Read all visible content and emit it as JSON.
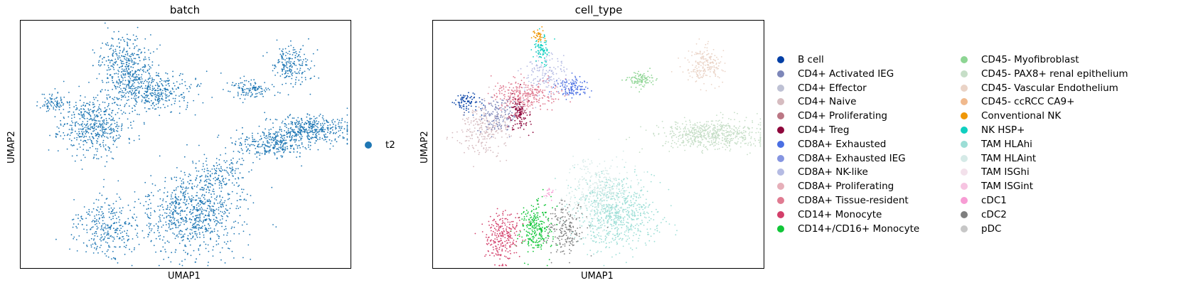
{
  "chart_data": [
    {
      "type": "scatter",
      "title": "batch",
      "xlabel": "UMAP1",
      "ylabel": "UMAP2",
      "grid": false,
      "legend_placement": "right",
      "legend": [
        {
          "name": "t2",
          "color": "#1f77b4"
        }
      ],
      "clusters": [
        {
          "category": "t2",
          "color": "#1f77b4",
          "cx": 0.1,
          "cy": 0.67,
          "sx": 0.02,
          "sy": 0.02,
          "n": 80
        },
        {
          "category": "t2",
          "color": "#1f77b4",
          "cx": 0.22,
          "cy": 0.58,
          "sx": 0.05,
          "sy": 0.06,
          "n": 500
        },
        {
          "category": "t2",
          "color": "#1f77b4",
          "cx": 0.32,
          "cy": 0.82,
          "sx": 0.04,
          "sy": 0.06,
          "n": 380
        },
        {
          "category": "t2",
          "color": "#1f77b4",
          "cx": 0.4,
          "cy": 0.71,
          "sx": 0.06,
          "sy": 0.04,
          "n": 380
        },
        {
          "category": "t2",
          "color": "#1f77b4",
          "cx": 0.7,
          "cy": 0.72,
          "sx": 0.03,
          "sy": 0.02,
          "n": 120
        },
        {
          "category": "t2",
          "color": "#1f77b4",
          "cx": 0.82,
          "cy": 0.82,
          "sx": 0.03,
          "sy": 0.04,
          "n": 200
        },
        {
          "category": "t2",
          "color": "#1f77b4",
          "cx": 0.76,
          "cy": 0.5,
          "sx": 0.06,
          "sy": 0.03,
          "n": 300
        },
        {
          "category": "t2",
          "color": "#1f77b4",
          "cx": 0.88,
          "cy": 0.56,
          "sx": 0.06,
          "sy": 0.03,
          "n": 400
        },
        {
          "category": "t2",
          "color": "#1f77b4",
          "cx": 0.52,
          "cy": 0.22,
          "sx": 0.07,
          "sy": 0.08,
          "n": 800
        },
        {
          "category": "t2",
          "color": "#1f77b4",
          "cx": 0.26,
          "cy": 0.16,
          "sx": 0.05,
          "sy": 0.06,
          "n": 300
        },
        {
          "category": "t2",
          "color": "#1f77b4",
          "cx": 0.6,
          "cy": 0.38,
          "sx": 0.04,
          "sy": 0.04,
          "n": 150
        }
      ]
    },
    {
      "type": "scatter",
      "title": "cell_type",
      "xlabel": "UMAP1",
      "ylabel": "UMAP2",
      "grid": false,
      "legend_placement": "right",
      "legend": [
        {
          "name": "B cell",
          "color": "#023fa5"
        },
        {
          "name": "CD4+ Activated IEG",
          "color": "#7d87b9"
        },
        {
          "name": "CD4+ Effector",
          "color": "#bec1d4"
        },
        {
          "name": "CD4+ Naive",
          "color": "#d6bcc0"
        },
        {
          "name": "CD4+ Proliferating",
          "color": "#bb7784"
        },
        {
          "name": "CD4+ Treg",
          "color": "#8e063b"
        },
        {
          "name": "CD8A+ Exhausted",
          "color": "#4a6fe3"
        },
        {
          "name": "CD8A+ Exhausted IEG",
          "color": "#8595e1"
        },
        {
          "name": "CD8A+ NK-like",
          "color": "#b5bbe3"
        },
        {
          "name": "CD8A+ Proliferating",
          "color": "#e6afb9"
        },
        {
          "name": "CD8A+ Tissue-resident",
          "color": "#e07b91"
        },
        {
          "name": "CD14+ Monocyte",
          "color": "#d33f6a"
        },
        {
          "name": "CD14+/CD16+ Monocyte",
          "color": "#11c638"
        },
        {
          "name": "CD45- Myofibroblast",
          "color": "#8dd593"
        },
        {
          "name": "CD45- PAX8+ renal epithelium",
          "color": "#c6dec7"
        },
        {
          "name": "CD45- Vascular Endothelium",
          "color": "#ead3c6"
        },
        {
          "name": "CD45- ccRCC CA9+",
          "color": "#f0b98d"
        },
        {
          "name": "Conventional NK",
          "color": "#ef9708"
        },
        {
          "name": "NK HSP+",
          "color": "#0fcfc0"
        },
        {
          "name": "TAM HLAhi",
          "color": "#9cded6"
        },
        {
          "name": "TAM HLAint",
          "color": "#d5eae7"
        },
        {
          "name": "TAM ISGhi",
          "color": "#f3e1eb"
        },
        {
          "name": "TAM ISGint",
          "color": "#f6c4e1"
        },
        {
          "name": "cDC1",
          "color": "#f79cd4"
        },
        {
          "name": "cDC2",
          "color": "#7f7f7f"
        },
        {
          "name": "pDC",
          "color": "#c7c7c7"
        }
      ],
      "clusters": [
        {
          "category": "B cell",
          "color": "#023fa5",
          "cx": 0.1,
          "cy": 0.67,
          "sx": 0.02,
          "sy": 0.02,
          "n": 80
        },
        {
          "category": "CD4+ Naive",
          "color": "#d6bcc0",
          "cx": 0.15,
          "cy": 0.56,
          "sx": 0.04,
          "sy": 0.05,
          "n": 250
        },
        {
          "category": "CD4+ Activated IEG",
          "color": "#7d87b9",
          "cx": 0.2,
          "cy": 0.62,
          "sx": 0.03,
          "sy": 0.04,
          "n": 150
        },
        {
          "category": "CD8A+ Tissue-resident",
          "color": "#e07b91",
          "cx": 0.28,
          "cy": 0.7,
          "sx": 0.05,
          "sy": 0.03,
          "n": 300
        },
        {
          "category": "CD4+ Treg",
          "color": "#8e063b",
          "cx": 0.26,
          "cy": 0.62,
          "sx": 0.015,
          "sy": 0.03,
          "n": 120
        },
        {
          "category": "CD8A+ Exhausted",
          "color": "#4a6fe3",
          "cx": 0.42,
          "cy": 0.73,
          "sx": 0.025,
          "sy": 0.02,
          "n": 120
        },
        {
          "category": "CD8A+ NK-like",
          "color": "#b5bbe3",
          "cx": 0.34,
          "cy": 0.78,
          "sx": 0.03,
          "sy": 0.04,
          "n": 150
        },
        {
          "category": "NK HSP+",
          "color": "#0fcfc0",
          "cx": 0.33,
          "cy": 0.88,
          "sx": 0.015,
          "sy": 0.03,
          "n": 80
        },
        {
          "category": "Conventional NK",
          "color": "#ef9708",
          "cx": 0.32,
          "cy": 0.94,
          "sx": 0.01,
          "sy": 0.015,
          "n": 40
        },
        {
          "category": "CD45- Myofibroblast",
          "color": "#8dd593",
          "cx": 0.63,
          "cy": 0.76,
          "sx": 0.02,
          "sy": 0.015,
          "n": 100
        },
        {
          "category": "CD45- Vascular Endothelium",
          "color": "#ead3c6",
          "cx": 0.82,
          "cy": 0.82,
          "sx": 0.03,
          "sy": 0.04,
          "n": 200
        },
        {
          "category": "CD45- PAX8+ renal epithelium",
          "color": "#c6dec7",
          "cx": 0.84,
          "cy": 0.54,
          "sx": 0.08,
          "sy": 0.03,
          "n": 600
        },
        {
          "category": "TAM HLAhi",
          "color": "#9cded6",
          "cx": 0.55,
          "cy": 0.22,
          "sx": 0.06,
          "sy": 0.07,
          "n": 700
        },
        {
          "category": "TAM HLAint",
          "color": "#d5eae7",
          "cx": 0.5,
          "cy": 0.32,
          "sx": 0.05,
          "sy": 0.06,
          "n": 300
        },
        {
          "category": "cDC2",
          "color": "#7f7f7f",
          "cx": 0.4,
          "cy": 0.16,
          "sx": 0.03,
          "sy": 0.05,
          "n": 200
        },
        {
          "category": "CD14+/CD16+ Monocyte",
          "color": "#11c638",
          "cx": 0.31,
          "cy": 0.16,
          "sx": 0.025,
          "sy": 0.05,
          "n": 250
        },
        {
          "category": "CD14+ Monocyte",
          "color": "#d33f6a",
          "cx": 0.21,
          "cy": 0.12,
          "sx": 0.025,
          "sy": 0.05,
          "n": 250
        },
        {
          "category": "cDC1",
          "color": "#f79cd4",
          "cx": 0.35,
          "cy": 0.3,
          "sx": 0.01,
          "sy": 0.01,
          "n": 15
        }
      ]
    }
  ]
}
